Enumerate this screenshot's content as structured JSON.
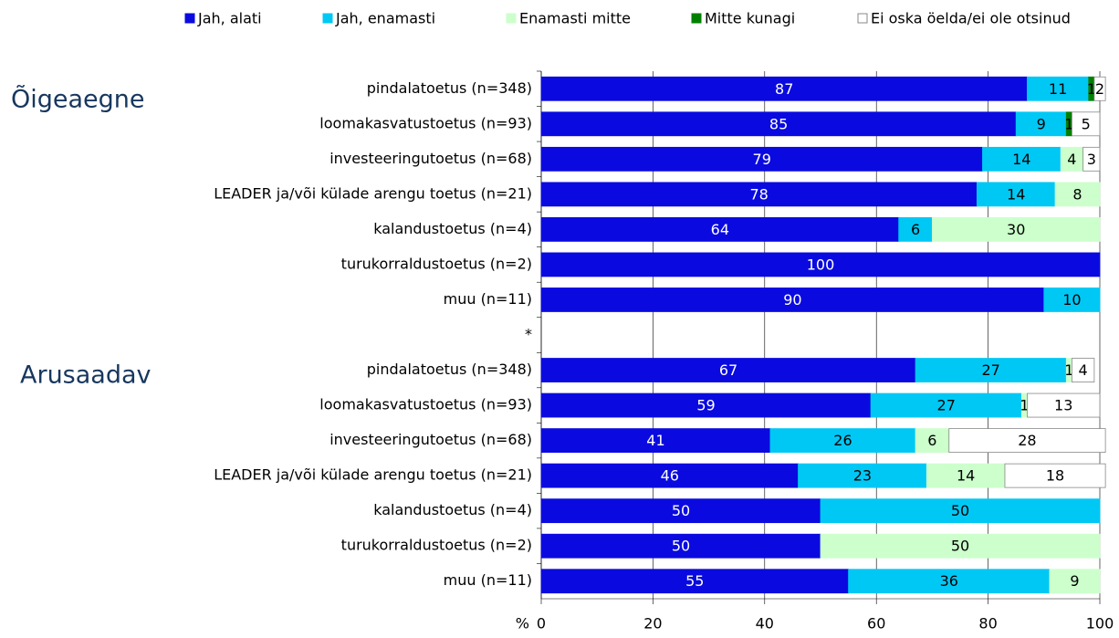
{
  "chart_data": {
    "type": "stacked_barh",
    "categories": [
      "pindalatoetus (n=348)",
      "loomakasvatustoetus (n=93)",
      "investeeringutoetus (n=68)",
      "LEADER ja/või külade arengu toetus (n=21)",
      "kalandustoetus (n=4)",
      "turukorraldustoetus (n=2)",
      "muu (n=11)",
      "*",
      "pindalatoetus (n=348)",
      "loomakasvatustoetus (n=93)",
      "investeeringutoetus (n=68)",
      "LEADER ja/või külade arengu toetus (n=21)",
      "kalandustoetus (n=4)",
      "turukorraldustoetus (n=2)",
      "muu (n=11)"
    ],
    "series": [
      {
        "name": "Jah, alati",
        "color": "#0a0ae0",
        "values": [
          87,
          85,
          79,
          78,
          64,
          100,
          90,
          null,
          67,
          59,
          41,
          46,
          50,
          50,
          55
        ]
      },
      {
        "name": "Jah, enamasti",
        "color": "#00c8f5",
        "values": [
          11,
          9,
          14,
          14,
          6,
          null,
          10,
          null,
          27,
          27,
          26,
          23,
          50,
          null,
          36
        ]
      },
      {
        "name": "Enamasti mitte",
        "color": "#ccffcc",
        "values": [
          null,
          null,
          4,
          8,
          30,
          null,
          null,
          null,
          1,
          1,
          6,
          14,
          null,
          50,
          9
        ]
      },
      {
        "name": "Mitte kunagi",
        "color": "#008000",
        "values": [
          1,
          1,
          null,
          null,
          null,
          null,
          null,
          null,
          null,
          null,
          null,
          null,
          null,
          null,
          null
        ]
      },
      {
        "name": "Ei oska öelda/ei ole otsinud",
        "color": "#ffffff",
        "values": [
          2,
          5,
          3,
          null,
          null,
          null,
          null,
          null,
          4,
          13,
          28,
          18,
          null,
          null,
          null
        ]
      }
    ],
    "annotations": [
      "Õigeaegne",
      "Arusaadav"
    ],
    "xlabel": "%",
    "xlim": [
      0,
      100
    ],
    "xticks": [
      0,
      20,
      40,
      60,
      80,
      100
    ],
    "grid": true
  }
}
